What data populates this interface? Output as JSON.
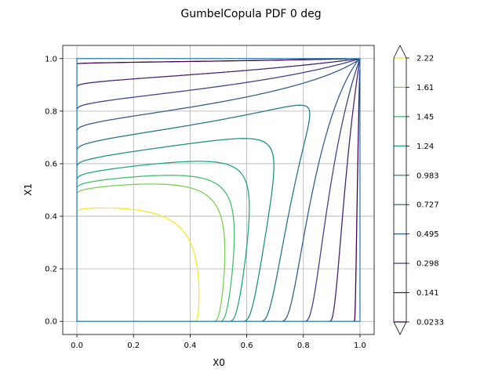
{
  "chart_data": {
    "type": "contour",
    "title": "GumbelCopula PDF 0 deg",
    "xlabel": "X0",
    "ylabel": "X1",
    "xlim": [
      -0.05,
      1.05
    ],
    "ylim": [
      -0.05,
      1.05
    ],
    "x_ticks": [
      "0.0",
      "0.2",
      "0.4",
      "0.6",
      "0.8",
      "1.0"
    ],
    "y_ticks": [
      "0.0",
      "0.2",
      "0.4",
      "0.6",
      "0.8",
      "1.0"
    ],
    "grid": true,
    "colormap": "viridis",
    "colorbar": {
      "extend": "both",
      "levels": [
        "0.0233",
        "0.141",
        "0.298",
        "0.495",
        "0.727",
        "0.983",
        "1.24",
        "1.45",
        "1.61",
        "2.22"
      ],
      "values": [
        0.0233,
        0.141,
        0.298,
        0.495,
        0.727,
        0.983,
        1.24,
        1.45,
        1.61,
        2.22
      ]
    },
    "level_colors": [
      "#440154",
      "#472d7b",
      "#3b528b",
      "#2c728e",
      "#21918c",
      "#28ae80",
      "#5ec962",
      "#addc30",
      "#fde725"
    ],
    "contour_level_colors": [
      "#440154",
      "#482475",
      "#414487",
      "#355f8d",
      "#2a788e",
      "#21918c",
      "#22a884",
      "#44bf70",
      "#7ad151",
      "#fde725"
    ],
    "domain_box": {
      "x": [
        0,
        1
      ],
      "y": [
        0,
        1
      ],
      "color": "#1f77b4"
    }
  }
}
